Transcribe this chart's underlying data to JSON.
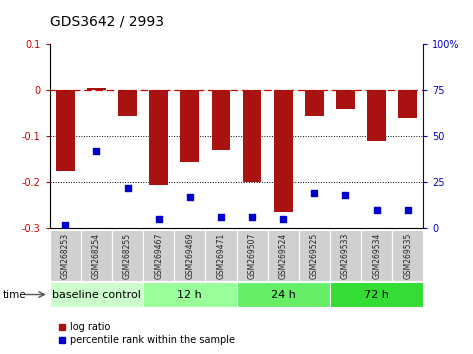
{
  "title": "GDS3642 / 2993",
  "samples": [
    "GSM268253",
    "GSM268254",
    "GSM268255",
    "GSM269467",
    "GSM269469",
    "GSM269471",
    "GSM269507",
    "GSM269524",
    "GSM269525",
    "GSM269533",
    "GSM269534",
    "GSM269535"
  ],
  "log_ratio": [
    -0.175,
    0.005,
    -0.055,
    -0.205,
    -0.155,
    -0.13,
    -0.2,
    -0.265,
    -0.055,
    -0.04,
    -0.11,
    -0.06
  ],
  "percentile_rank": [
    2,
    42,
    22,
    5,
    17,
    6,
    6,
    5,
    19,
    18,
    10,
    10
  ],
  "groups": [
    {
      "label": "baseline control",
      "start": 0,
      "end": 3,
      "color": "#ccffcc"
    },
    {
      "label": "12 h",
      "start": 3,
      "end": 6,
      "color": "#99ff99"
    },
    {
      "label": "24 h",
      "start": 6,
      "end": 9,
      "color": "#66ee66"
    },
    {
      "label": "72 h",
      "start": 9,
      "end": 12,
      "color": "#33dd33"
    }
  ],
  "bar_color": "#aa1111",
  "dot_color": "#0000cc",
  "ylim_left": [
    -0.3,
    0.1
  ],
  "ylim_right": [
    0,
    100
  ],
  "ylabel_left_ticks": [
    0.1,
    0.0,
    -0.1,
    -0.2,
    -0.3
  ],
  "ylabel_right_ticks": [
    100,
    75,
    50,
    25,
    0
  ],
  "hline_zero_color": "#cc0000",
  "hline_dotted_vals": [
    -0.1,
    -0.2
  ],
  "tick_label_fontsize": 7,
  "title_fontsize": 10,
  "group_label_fontsize": 8,
  "legend_fontsize": 7,
  "bar_width": 0.6
}
